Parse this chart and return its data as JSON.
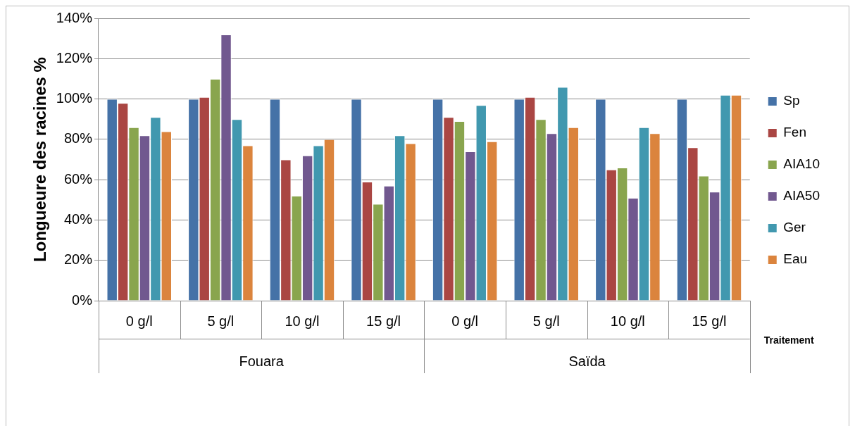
{
  "chart_data": {
    "type": "bar",
    "ylabel": "Longueure des racines %",
    "xlabel": "Traitement",
    "categories": [
      "0 g/l",
      "5 g/l",
      "10 g/l",
      "15 g/l",
      "0 g/l",
      "5 g/l",
      "10 g/l",
      "15 g/l"
    ],
    "annotations": [
      "Fouara",
      "Saïda"
    ],
    "series": [
      {
        "name": "Sp",
        "color": "#4572a7",
        "values": [
          100,
          100,
          100,
          100,
          100,
          100,
          100,
          100
        ]
      },
      {
        "name": "Fen",
        "color": "#aa4643",
        "values": [
          98,
          101,
          70,
          59,
          91,
          101,
          65,
          76
        ]
      },
      {
        "name": "AIA10",
        "color": "#89a54e",
        "values": [
          86,
          110,
          52,
          48,
          89,
          90,
          66,
          62
        ]
      },
      {
        "name": "AIA50",
        "color": "#71588f",
        "values": [
          82,
          132,
          72,
          57,
          74,
          83,
          51,
          54
        ]
      },
      {
        "name": "Ger",
        "color": "#4198af",
        "values": [
          91,
          90,
          77,
          82,
          97,
          106,
          86,
          102
        ]
      },
      {
        "name": "Eau",
        "color": "#db843d",
        "values": [
          84,
          77,
          80,
          78,
          79,
          86,
          83,
          102
        ]
      }
    ],
    "ylim": [
      0,
      140
    ],
    "yticks": [
      {
        "value": 0,
        "label": "0%"
      },
      {
        "value": 20,
        "label": "20%"
      },
      {
        "value": 40,
        "label": "40%"
      },
      {
        "value": 60,
        "label": "60%"
      },
      {
        "value": 80,
        "label": "80%"
      },
      {
        "value": 100,
        "label": "100%"
      },
      {
        "value": 120,
        "label": "120%"
      },
      {
        "value": 140,
        "label": "140%"
      }
    ],
    "grid": "y",
    "legend": "right"
  }
}
